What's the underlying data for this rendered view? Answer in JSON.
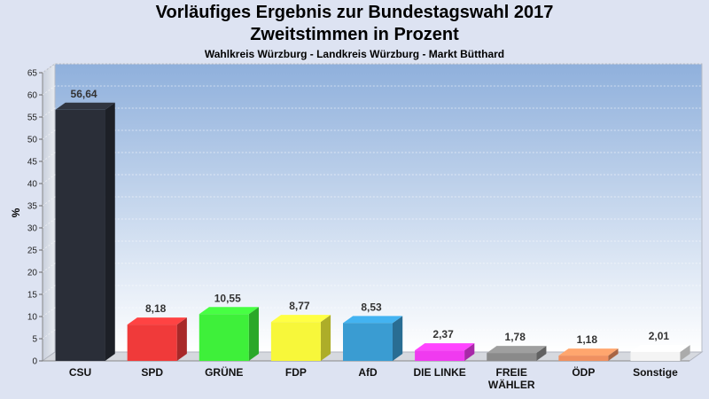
{
  "chart_data": {
    "type": "bar",
    "title": "Vorläufiges Ergebnis zur Bundestagswahl 2017",
    "title_line2": "Zweitstimmen in Prozent",
    "subtitle": "Wahlkreis Würzburg - Landkreis Würzburg - Markt Bütthard",
    "ylabel": "%",
    "xlabel": "",
    "ylim": [
      0,
      65
    ],
    "yticks": [
      0,
      5,
      10,
      15,
      20,
      25,
      30,
      35,
      40,
      45,
      50,
      55,
      60,
      65
    ],
    "grid": true,
    "categories": [
      "CSU",
      "SPD",
      "GRÜNE",
      "FDP",
      "AfD",
      "DIE LINKE",
      "FREIE WÄHLER",
      "ÖDP",
      "Sonstige"
    ],
    "category_lines": [
      [
        "CSU"
      ],
      [
        "SPD"
      ],
      [
        "GRÜNE"
      ],
      [
        "FDP"
      ],
      [
        "AfD"
      ],
      [
        "DIE LINKE"
      ],
      [
        "FREIE",
        "WÄHLER"
      ],
      [
        "ÖDP"
      ],
      [
        "Sonstige"
      ]
    ],
    "values": [
      56.64,
      8.18,
      10.55,
      8.77,
      8.53,
      2.37,
      1.78,
      1.18,
      2.01
    ],
    "value_labels": [
      "56,64",
      "8,18",
      "10,55",
      "8,77",
      "8,53",
      "2,37",
      "1,78",
      "1,18",
      "2,01"
    ],
    "colors": [
      "#2a2e38",
      "#f03a3a",
      "#3ef03a",
      "#f7f73a",
      "#3a9cd2",
      "#f03af0",
      "#8a8a8a",
      "#f09060",
      "#f4f4f4"
    ]
  }
}
